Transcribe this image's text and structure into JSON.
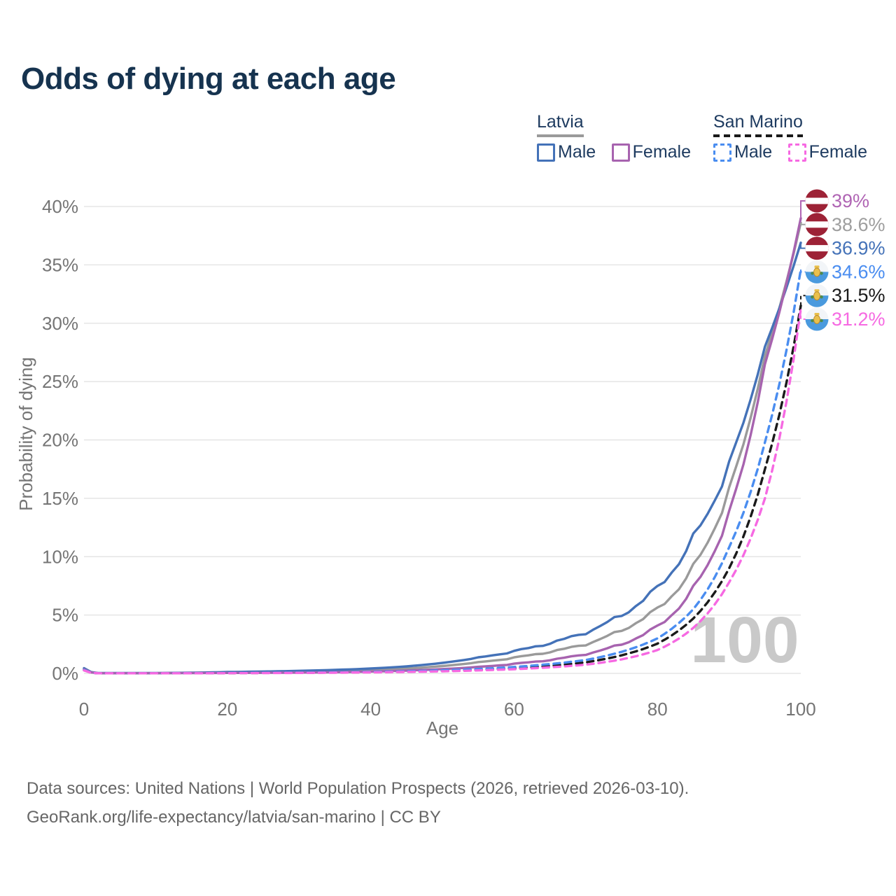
{
  "title": "Odds of dying at each age",
  "watermark_age": "100",
  "colors": {
    "title_navy": "#16334f",
    "axis_gray": "#757575",
    "grid": "#e5e5e5",
    "watermark": "#c9c9c9",
    "latvia_flag_red": "#9d2236",
    "san_marino_flag_blue": "#4a9ade"
  },
  "legend": {
    "groups": [
      {
        "country": "Latvia",
        "line_style": "solid",
        "line_color": "#9a9a9a",
        "items": [
          {
            "label": "Male",
            "color": "#4472b8"
          },
          {
            "label": "Female",
            "color": "#a763af"
          }
        ]
      },
      {
        "country": "San Marino",
        "line_style": "dashed",
        "line_color": "#1a1a1a",
        "items": [
          {
            "label": "Male",
            "color": "#4a8df0"
          },
          {
            "label": "Female",
            "color": "#f669e2"
          }
        ]
      }
    ]
  },
  "chart_data": {
    "type": "line",
    "title": "Odds of dying at each age",
    "xlabel": "Age",
    "ylabel": "Probability of dying",
    "xlim": [
      0,
      100
    ],
    "ylim_pct": [
      0,
      40
    ],
    "x_ticks": [
      0,
      20,
      40,
      60,
      80,
      100
    ],
    "y_ticks_pct": [
      0,
      5,
      10,
      15,
      20,
      25,
      30,
      35,
      40
    ],
    "grid": true,
    "legend_position": "top-right",
    "ages": [
      0,
      5,
      10,
      15,
      20,
      25,
      30,
      35,
      40,
      45,
      50,
      55,
      60,
      65,
      70,
      75,
      80,
      85,
      90,
      95,
      100
    ],
    "series": [
      {
        "id": "latvia-both",
        "country": "Latvia",
        "sex": "Both sexes",
        "style": "solid",
        "color": "#9a9a9a",
        "values_pct": [
          0.4,
          0.02,
          0.02,
          0.05,
          0.08,
          0.11,
          0.15,
          0.2,
          0.29,
          0.42,
          0.63,
          0.95,
          1.35,
          1.85,
          2.5,
          3.7,
          5.5,
          9.0,
          15.8,
          27.2,
          38.6
        ],
        "end_label": "38.6%"
      },
      {
        "id": "latvia-male",
        "country": "Latvia",
        "sex": "Male",
        "style": "solid",
        "color": "#4472b8",
        "values_pct": [
          0.45,
          0.03,
          0.03,
          0.06,
          0.12,
          0.16,
          0.22,
          0.3,
          0.42,
          0.6,
          0.9,
          1.35,
          1.9,
          2.6,
          3.5,
          5.0,
          7.3,
          11.5,
          18.0,
          28.0,
          36.9
        ],
        "end_label": "36.9%"
      },
      {
        "id": "latvia-female",
        "country": "Latvia",
        "sex": "Female",
        "style": "solid",
        "color": "#a763af",
        "values_pct": [
          0.35,
          0.02,
          0.02,
          0.03,
          0.04,
          0.05,
          0.07,
          0.1,
          0.16,
          0.24,
          0.37,
          0.55,
          0.82,
          1.15,
          1.65,
          2.5,
          4.0,
          7.2,
          13.8,
          26.5,
          39.0
        ],
        "end_label": "39%"
      },
      {
        "id": "san-marino-both",
        "country": "San Marino",
        "sex": "Both sexes",
        "style": "dashed",
        "color": "#1a1a1a",
        "values_pct": [
          0.28,
          0.01,
          0.01,
          0.02,
          0.03,
          0.04,
          0.05,
          0.08,
          0.11,
          0.15,
          0.22,
          0.31,
          0.45,
          0.65,
          0.95,
          1.55,
          2.55,
          4.7,
          9.0,
          17.5,
          31.5
        ],
        "end_label": "31.5%"
      },
      {
        "id": "san-marino-male",
        "country": "San Marino",
        "sex": "Male",
        "style": "dashed",
        "color": "#4a8df0",
        "values_pct": [
          0.3,
          0.01,
          0.01,
          0.02,
          0.04,
          0.05,
          0.06,
          0.09,
          0.13,
          0.18,
          0.27,
          0.38,
          0.55,
          0.8,
          1.15,
          1.85,
          3.0,
          5.5,
          10.8,
          19.8,
          34.6
        ],
        "end_label": "34.6%"
      },
      {
        "id": "san-marino-female",
        "country": "San Marino",
        "sex": "Female",
        "style": "dashed",
        "color": "#f669e2",
        "values_pct": [
          0.25,
          0.01,
          0.01,
          0.01,
          0.02,
          0.03,
          0.04,
          0.06,
          0.09,
          0.13,
          0.18,
          0.26,
          0.36,
          0.52,
          0.75,
          1.2,
          2.0,
          3.9,
          7.8,
          15.0,
          31.2
        ],
        "end_label": "31.2%"
      }
    ],
    "end_labels": [
      {
        "series": "latvia-female",
        "text": "39%",
        "value_pct": 39.0,
        "color": "#b065b4",
        "flag": "latvia"
      },
      {
        "series": "latvia-both",
        "text": "38.6%",
        "value_pct": 38.6,
        "color": "#9e9e9e",
        "flag": "latvia"
      },
      {
        "series": "latvia-male",
        "text": "36.9%",
        "value_pct": 36.9,
        "color": "#4472b8",
        "flag": "latvia"
      },
      {
        "series": "san-marino-male",
        "text": "34.6%",
        "value_pct": 34.6,
        "color": "#4a8df0",
        "flag": "san-marino"
      },
      {
        "series": "san-marino-both",
        "text": "31.5%",
        "value_pct": 31.5,
        "color": "#1a1a1a",
        "flag": "san-marino"
      },
      {
        "series": "san-marino-female",
        "text": "31.2%",
        "value_pct": 31.2,
        "color": "#f669e2",
        "flag": "san-marino"
      }
    ]
  },
  "footer": {
    "line1": "Data sources: United Nations | World Population Prospects (2026, retrieved 2026-03-10).",
    "line2": "GeoRank.org/life-expectancy/latvia/san-marino | CC BY"
  }
}
